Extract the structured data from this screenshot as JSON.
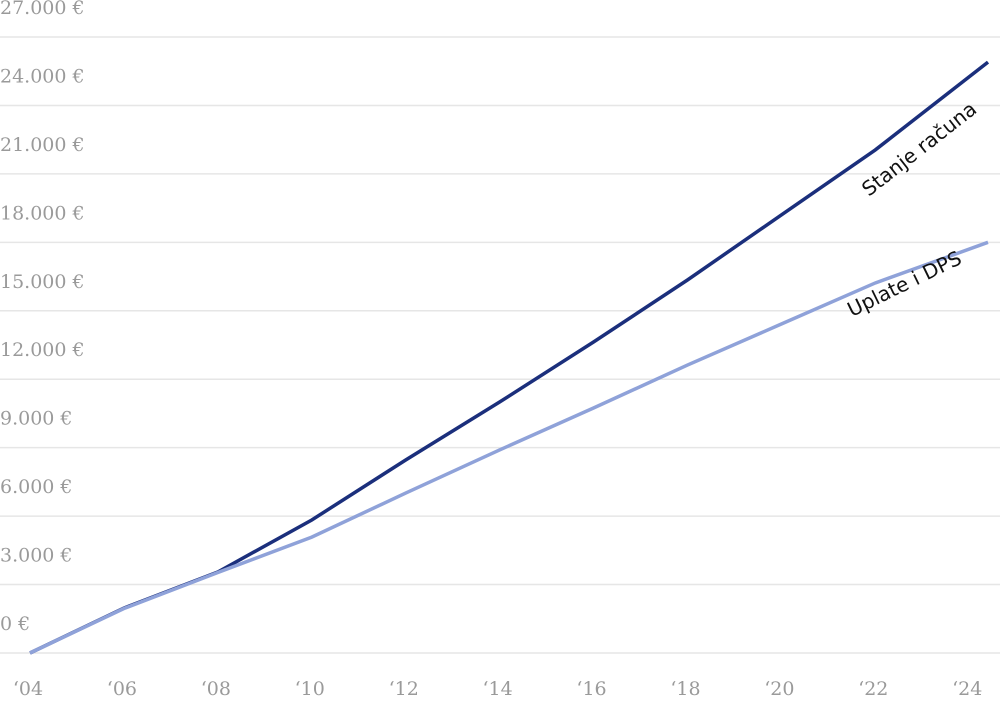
{
  "chart_data": {
    "type": "line",
    "x": [
      2004,
      2006,
      2008,
      2010,
      2012,
      2014,
      2016,
      2018,
      2020,
      2022,
      2024.4
    ],
    "series": [
      {
        "name": "Stanje računa",
        "color": "#1b2f7c",
        "values": [
          0,
          1970,
          3550,
          5830,
          8460,
          11000,
          13630,
          16350,
          19200,
          22050,
          25900
        ]
      },
      {
        "name": "Uplate i DPS",
        "color": "#8fa2d9",
        "values": [
          0,
          1950,
          3530,
          5080,
          7010,
          8900,
          10740,
          12620,
          14420,
          16220,
          18000
        ]
      }
    ],
    "xlim": [
      2004,
      2024.4
    ],
    "xticks": [
      {
        "value": 2004,
        "label": "‘04"
      },
      {
        "value": 2006,
        "label": "‘06"
      },
      {
        "value": 2008,
        "label": "‘08"
      },
      {
        "value": 2010,
        "label": "‘10"
      },
      {
        "value": 2012,
        "label": "‘12"
      },
      {
        "value": 2014,
        "label": "‘14"
      },
      {
        "value": 2016,
        "label": "‘16"
      },
      {
        "value": 2018,
        "label": "‘18"
      },
      {
        "value": 2020,
        "label": "‘20"
      },
      {
        "value": 2022,
        "label": "‘22"
      },
      {
        "value": 2024,
        "label": "‘24"
      }
    ],
    "ylim": [
      0,
      27000
    ],
    "yticks": [
      {
        "value": 0,
        "label": "0 €"
      },
      {
        "value": 3000,
        "label": "3.000 €"
      },
      {
        "value": 6000,
        "label": "6.000 €"
      },
      {
        "value": 9000,
        "label": "9.000 €"
      },
      {
        "value": 12000,
        "label": "12.000 €"
      },
      {
        "value": 15000,
        "label": "15.000 €"
      },
      {
        "value": 18000,
        "label": "18.000 €"
      },
      {
        "value": 21000,
        "label": "21.000 €"
      },
      {
        "value": 24000,
        "label": "24.000 €"
      },
      {
        "value": 27000,
        "label": "27.000 €"
      }
    ],
    "grid": true
  }
}
